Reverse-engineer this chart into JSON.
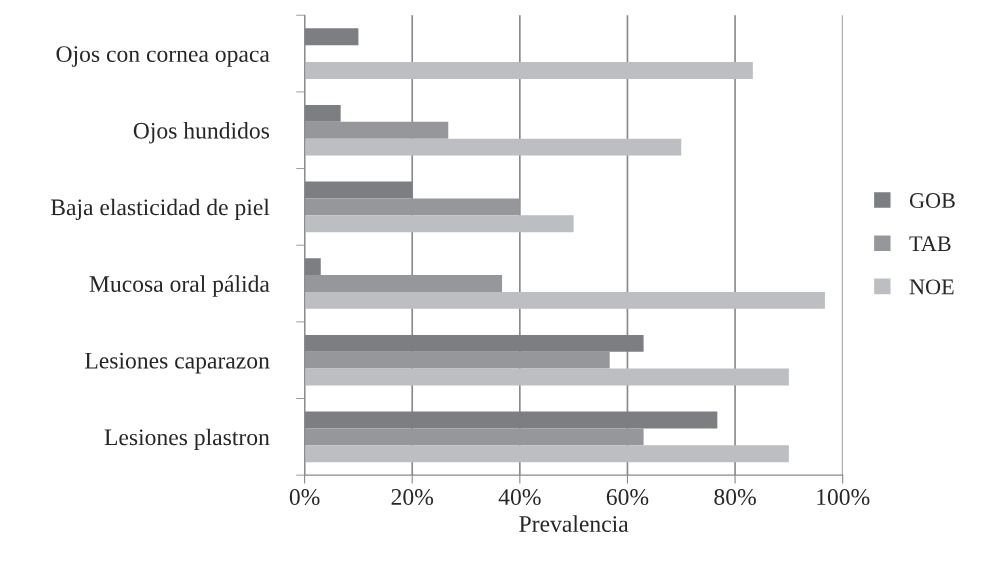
{
  "chart_data": {
    "type": "bar",
    "orientation": "horizontal",
    "xlabel": "Prevalencia",
    "categories": [
      "Ojos con cornea opaca",
      "Ojos hundidos",
      "Baja elasticidad de piel",
      "Mucosa oral pálida",
      "Lesiones caparazon",
      "Lesiones plastron"
    ],
    "series": [
      {
        "name": "GOB",
        "color": "#7d7e82",
        "values": [
          10,
          6.7,
          20,
          3,
          63,
          76.7
        ]
      },
      {
        "name": "TAB",
        "color": "#96979b",
        "values": [
          0,
          26.7,
          40,
          36.7,
          56.7,
          63
        ]
      },
      {
        "name": "NOE",
        "color": "#bdbec2",
        "values": [
          83.3,
          70,
          50,
          96.7,
          90,
          90
        ]
      }
    ],
    "xlim": [
      0,
      100
    ],
    "xticks": [
      {
        "value": 0,
        "label": "0%"
      },
      {
        "value": 20,
        "label": "20%"
      },
      {
        "value": 40,
        "label": "40%"
      },
      {
        "value": 60,
        "label": "60%"
      },
      {
        "value": 80,
        "label": "80%"
      },
      {
        "value": 100,
        "label": "100%"
      }
    ],
    "grid": "x",
    "legend": "right"
  }
}
